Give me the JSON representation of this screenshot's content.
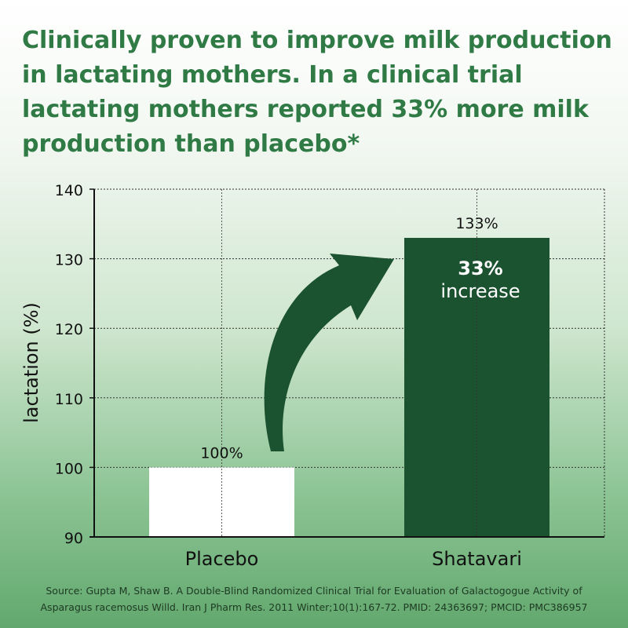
{
  "headline": "Clinically proven to improve milk production in lactating mothers. In a clinical trial lactating mothers reported 33% more milk production than placebo*",
  "chart_data": {
    "type": "bar",
    "categories": [
      "Placebo",
      "Shatavari"
    ],
    "values": [
      100,
      133
    ],
    "value_labels": [
      "100%",
      "133%"
    ],
    "ylabel": "lactation (%)",
    "ylim": [
      90,
      140
    ],
    "yticks": [
      90,
      100,
      110,
      120,
      130,
      140
    ],
    "grid": true,
    "bar_colors": [
      "#ffffff",
      "#1b5230"
    ],
    "annotation": {
      "bold": "33%",
      "text": "increase"
    },
    "arrow_color": "#1b5230"
  },
  "source": {
    "line1": "Source: Gupta M, Shaw B. A Double-Blind Randomized Clinical Trial for Evaluation of Galactogogue Activity of",
    "line2": "Asparagus racemosus Willd. Iran J Pharm Res. 2011 Winter;10(1):167-72. PMID: 24363697; PMCID: PMC386957"
  }
}
